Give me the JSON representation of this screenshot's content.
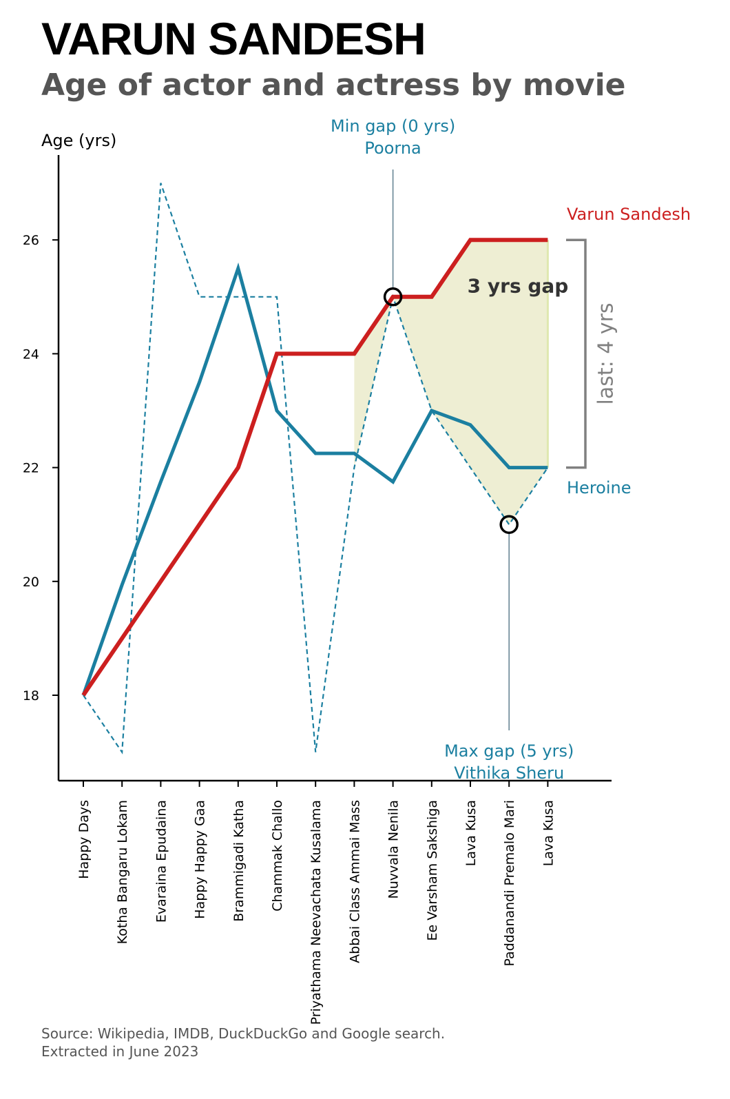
{
  "title": "VARUN SANDESH",
  "subtitle": "Age of actor and actress by movie",
  "source_line1": "Source: Wikipedia, IMDB, DuckDuckGo and Google search.",
  "source_line2": "Extracted in June 2023",
  "colors": {
    "actor": "#cc1f1f",
    "heroine": "#1b7fa0",
    "shade": "#e8e8c4",
    "axis": "#000000",
    "bracket": "#808080",
    "leader": "#5f7f8f",
    "gap_text": "#333333"
  },
  "chart_data": {
    "type": "line",
    "ylabel": "Age (yrs)",
    "ylim": [
      16.5,
      27.5
    ],
    "yticks": [
      18,
      20,
      22,
      24,
      26
    ],
    "categories": [
      "Happy Days",
      "Kotha Bangaru Lokam",
      "Evaraina Epudaina",
      "Happy Happy Gaa",
      "Brammigadi Katha",
      "Chammak Challo",
      "Priyathama Neevachata Kusalama",
      "Abbai Class Ammai Mass",
      "Nuvvala Nenila",
      "Ee Varsham Sakshiga",
      "Lava Kusa",
      "Paddanandi Premalo Mari",
      "Lava Kusa"
    ],
    "series": [
      {
        "name": "Varun Sandesh",
        "style": "solid-thick",
        "values": [
          18,
          19,
          20,
          21,
          22,
          24,
          24,
          24,
          25,
          25,
          26,
          26,
          26
        ]
      },
      {
        "name": "Heroine",
        "style": "solid",
        "values": [
          18,
          19.94,
          21.75,
          23.5,
          25.5,
          23,
          22.25,
          22.25,
          21.75,
          23,
          22.75,
          22,
          22
        ]
      },
      {
        "name": "",
        "style": "dashed",
        "values": [
          18,
          17,
          27,
          25,
          25,
          25,
          17,
          22,
          25,
          23,
          22,
          21,
          22
        ]
      }
    ],
    "shaded_range": {
      "from_index": 7,
      "to_index": 12,
      "upper_series": 0,
      "lower_series": 2
    },
    "annotations": {
      "min_gap": {
        "label_line1": "Min gap (0 yrs)",
        "label_line2": "Poorna",
        "index": 8,
        "value": 25
      },
      "max_gap": {
        "label_line1": "Max gap (5 yrs)",
        "label_line2": "Vithika Sheru",
        "index": 11,
        "value": 21
      },
      "center_gap": {
        "label": "3 yrs gap",
        "value": 25.2
      },
      "last_gap": {
        "label": "last: 4 yrs",
        "from": 22,
        "to": 26
      },
      "actor_label": "Varun Sandesh",
      "heroine_label": "Heroine"
    }
  }
}
